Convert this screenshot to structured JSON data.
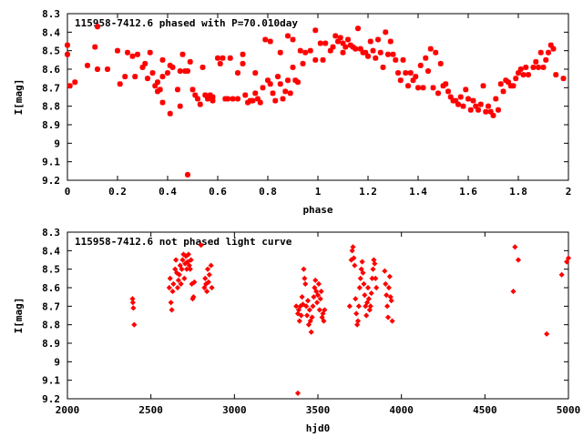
{
  "chart_data": [
    {
      "type": "scatter",
      "title": "115958-7412.6 phased with P=70.010day",
      "xlabel": "phase",
      "ylabel": "I[mag]",
      "xlim": [
        0,
        2
      ],
      "ylim": [
        9.2,
        8.3
      ],
      "y_inverted": true,
      "xticks": [
        0,
        0.2,
        0.4,
        0.6,
        0.8,
        1,
        1.2,
        1.4,
        1.6,
        1.8,
        2
      ],
      "xtick_labels": [
        "0",
        "0.2",
        "0.4",
        "0.6",
        "0.8",
        "1",
        "1.2",
        "1.4",
        "1.6",
        "1.8",
        "2"
      ],
      "yticks": [
        8.3,
        8.4,
        8.5,
        8.6,
        8.7,
        8.8,
        8.9,
        9,
        9.1,
        9.2
      ],
      "ytick_labels": [
        "8.3",
        "8.4",
        "8.5",
        "8.6",
        "8.7",
        "8.8",
        "8.9",
        "9",
        "9.1",
        "9.2"
      ],
      "grid": false,
      "marker": "asterisk",
      "color": "#ff0000",
      "points": [
        [
          0.0,
          8.47
        ],
        [
          0.0,
          8.52
        ],
        [
          0.01,
          8.69
        ],
        [
          0.03,
          8.67
        ],
        [
          0.08,
          8.58
        ],
        [
          0.11,
          8.48
        ],
        [
          0.12,
          8.37
        ],
        [
          0.12,
          8.6
        ],
        [
          0.16,
          8.6
        ],
        [
          0.2,
          8.5
        ],
        [
          0.21,
          8.68
        ],
        [
          0.23,
          8.64
        ],
        [
          0.24,
          8.51
        ],
        [
          0.26,
          8.53
        ],
        [
          0.27,
          8.64
        ],
        [
          0.28,
          8.52
        ],
        [
          0.3,
          8.59
        ],
        [
          0.31,
          8.57
        ],
        [
          0.32,
          8.65
        ],
        [
          0.33,
          8.51
        ],
        [
          0.34,
          8.62
        ],
        [
          0.35,
          8.69
        ],
        [
          0.36,
          8.67
        ],
        [
          0.36,
          8.72
        ],
        [
          0.37,
          8.71
        ],
        [
          0.38,
          8.55
        ],
        [
          0.38,
          8.78
        ],
        [
          0.38,
          8.64
        ],
        [
          0.4,
          8.62
        ],
        [
          0.41,
          8.58
        ],
        [
          0.41,
          8.84
        ],
        [
          0.42,
          8.59
        ],
        [
          0.44,
          8.71
        ],
        [
          0.45,
          8.61
        ],
        [
          0.45,
          8.8
        ],
        [
          0.46,
          8.52
        ],
        [
          0.47,
          8.61
        ],
        [
          0.48,
          8.61
        ],
        [
          0.49,
          8.56
        ],
        [
          0.5,
          8.71
        ],
        [
          0.51,
          8.74
        ],
        [
          0.52,
          8.76
        ],
        [
          0.53,
          8.79
        ],
        [
          0.54,
          8.59
        ],
        [
          0.55,
          8.74
        ],
        [
          0.56,
          8.76
        ],
        [
          0.57,
          8.74
        ],
        [
          0.58,
          8.77
        ],
        [
          0.58,
          8.75
        ],
        [
          0.6,
          8.54
        ],
        [
          0.61,
          8.57
        ],
        [
          0.62,
          8.54
        ],
        [
          0.63,
          8.76
        ],
        [
          0.64,
          8.76
        ],
        [
          0.65,
          8.54
        ],
        [
          0.66,
          8.76
        ],
        [
          0.68,
          8.76
        ],
        [
          0.68,
          8.62
        ],
        [
          0.7,
          8.57
        ],
        [
          0.7,
          8.52
        ],
        [
          0.71,
          8.74
        ],
        [
          0.72,
          8.78
        ],
        [
          0.73,
          8.77
        ],
        [
          0.74,
          8.77
        ],
        [
          0.75,
          8.73
        ],
        [
          0.75,
          8.62
        ],
        [
          0.76,
          8.76
        ],
        [
          0.77,
          8.78
        ],
        [
          0.78,
          8.7
        ],
        [
          0.79,
          8.44
        ],
        [
          0.8,
          8.66
        ],
        [
          0.81,
          8.68
        ],
        [
          0.81,
          8.45
        ],
        [
          0.82,
          8.73
        ],
        [
          0.83,
          8.77
        ],
        [
          0.84,
          8.64
        ],
        [
          0.85,
          8.51
        ],
        [
          0.85,
          8.68
        ],
        [
          0.86,
          8.76
        ],
        [
          0.87,
          8.72
        ],
        [
          0.88,
          8.66
        ],
        [
          0.88,
          8.42
        ],
        [
          0.89,
          8.73
        ],
        [
          0.9,
          8.44
        ],
        [
          0.9,
          8.59
        ],
        [
          0.91,
          8.66
        ],
        [
          0.92,
          8.67
        ],
        [
          0.93,
          8.5
        ],
        [
          0.94,
          8.57
        ],
        [
          0.95,
          8.51
        ],
        [
          0.97,
          8.5
        ],
        [
          0.99,
          8.39
        ],
        [
          0.99,
          8.55
        ],
        [
          1.01,
          8.46
        ],
        [
          1.02,
          8.55
        ],
        [
          1.03,
          8.46
        ],
        [
          1.05,
          8.5
        ],
        [
          1.06,
          8.48
        ],
        [
          1.07,
          8.42
        ],
        [
          1.08,
          8.45
        ],
        [
          1.09,
          8.43
        ],
        [
          1.1,
          8.46
        ],
        [
          1.1,
          8.51
        ],
        [
          1.11,
          8.48
        ],
        [
          1.12,
          8.44
        ],
        [
          1.13,
          8.47
        ],
        [
          1.14,
          8.48
        ],
        [
          1.15,
          8.49
        ],
        [
          1.16,
          8.38
        ],
        [
          1.17,
          8.49
        ],
        [
          1.18,
          8.51
        ],
        [
          1.19,
          8.51
        ],
        [
          1.2,
          8.53
        ],
        [
          1.21,
          8.45
        ],
        [
          1.22,
          8.5
        ],
        [
          1.23,
          8.54
        ],
        [
          1.24,
          8.44
        ],
        [
          1.25,
          8.51
        ],
        [
          1.26,
          8.59
        ],
        [
          1.27,
          8.4
        ],
        [
          1.28,
          8.52
        ],
        [
          1.29,
          8.45
        ],
        [
          1.3,
          8.52
        ],
        [
          1.31,
          8.55
        ],
        [
          1.32,
          8.62
        ],
        [
          1.33,
          8.66
        ],
        [
          1.34,
          8.55
        ],
        [
          1.35,
          8.62
        ],
        [
          1.36,
          8.69
        ],
        [
          1.37,
          8.62
        ],
        [
          1.38,
          8.66
        ],
        [
          1.39,
          8.64
        ],
        [
          1.4,
          8.7
        ],
        [
          1.41,
          8.58
        ],
        [
          1.42,
          8.7
        ],
        [
          1.43,
          8.54
        ],
        [
          1.44,
          8.61
        ],
        [
          1.45,
          8.49
        ],
        [
          1.46,
          8.7
        ],
        [
          1.47,
          8.51
        ],
        [
          1.48,
          8.73
        ],
        [
          1.49,
          8.57
        ],
        [
          1.5,
          8.69
        ],
        [
          1.51,
          8.68
        ],
        [
          1.52,
          8.72
        ],
        [
          1.53,
          8.75
        ],
        [
          1.54,
          8.77
        ],
        [
          1.55,
          8.77
        ],
        [
          1.56,
          8.79
        ],
        [
          1.57,
          8.75
        ],
        [
          1.58,
          8.8
        ],
        [
          1.59,
          8.71
        ],
        [
          1.6,
          8.76
        ],
        [
          1.61,
          8.82
        ],
        [
          1.62,
          8.77
        ],
        [
          1.63,
          8.8
        ],
        [
          1.64,
          8.82
        ],
        [
          1.65,
          8.79
        ],
        [
          1.66,
          8.69
        ],
        [
          1.67,
          8.83
        ],
        [
          1.68,
          8.8
        ],
        [
          1.69,
          8.83
        ],
        [
          1.7,
          8.85
        ],
        [
          1.71,
          8.76
        ],
        [
          1.72,
          8.82
        ],
        [
          1.73,
          8.68
        ],
        [
          1.74,
          8.72
        ],
        [
          1.75,
          8.66
        ],
        [
          1.76,
          8.67
        ],
        [
          1.77,
          8.69
        ],
        [
          1.78,
          8.69
        ],
        [
          1.79,
          8.65
        ],
        [
          1.8,
          8.62
        ],
        [
          1.81,
          8.6
        ],
        [
          1.82,
          8.63
        ],
        [
          1.83,
          8.59
        ],
        [
          1.84,
          8.63
        ],
        [
          1.86,
          8.59
        ],
        [
          1.87,
          8.56
        ],
        [
          1.88,
          8.59
        ],
        [
          1.89,
          8.51
        ],
        [
          1.9,
          8.59
        ],
        [
          1.91,
          8.55
        ],
        [
          1.92,
          8.51
        ],
        [
          1.93,
          8.47
        ],
        [
          1.94,
          8.49
        ],
        [
          1.95,
          8.63
        ],
        [
          1.98,
          8.65
        ],
        [
          0.48,
          9.17
        ]
      ]
    },
    {
      "type": "scatter",
      "title": "115958-7412.6 not phased light curve",
      "xlabel": "hjd0",
      "ylabel": "I[mag]",
      "xlim": [
        2000,
        5000
      ],
      "ylim": [
        9.2,
        8.3
      ],
      "y_inverted": true,
      "xticks": [
        2000,
        2500,
        3000,
        3500,
        4000,
        4500,
        5000
      ],
      "xtick_labels": [
        "2000",
        "2500",
        "3000",
        "3500",
        "4000",
        "4500",
        "5000"
      ],
      "yticks": [
        8.3,
        8.4,
        8.5,
        8.6,
        8.7,
        8.8,
        8.9,
        9,
        9.1,
        9.2
      ],
      "ytick_labels": [
        "8.3",
        "8.4",
        "8.5",
        "8.6",
        "8.7",
        "8.8",
        "8.9",
        "9",
        "9.1",
        "9.2"
      ],
      "grid": false,
      "marker": "diamond",
      "color": "#ff0000",
      "points": [
        [
          2390,
          8.66
        ],
        [
          2392,
          8.68
        ],
        [
          2395,
          8.71
        ],
        [
          2400,
          8.8
        ],
        [
          2610,
          8.6
        ],
        [
          2615,
          8.55
        ],
        [
          2620,
          8.68
        ],
        [
          2625,
          8.72
        ],
        [
          2630,
          8.62
        ],
        [
          2635,
          8.58
        ],
        [
          2645,
          8.5
        ],
        [
          2650,
          8.45
        ],
        [
          2655,
          8.52
        ],
        [
          2660,
          8.6
        ],
        [
          2665,
          8.56
        ],
        [
          2670,
          8.53
        ],
        [
          2675,
          8.48
        ],
        [
          2680,
          8.58
        ],
        [
          2685,
          8.5
        ],
        [
          2690,
          8.45
        ],
        [
          2695,
          8.42
        ],
        [
          2700,
          8.55
        ],
        [
          2705,
          8.47
        ],
        [
          2710,
          8.43
        ],
        [
          2715,
          8.5
        ],
        [
          2720,
          8.46
        ],
        [
          2725,
          8.42
        ],
        [
          2730,
          8.48
        ],
        [
          2735,
          8.5
        ],
        [
          2740,
          8.45
        ],
        [
          2745,
          8.58
        ],
        [
          2750,
          8.66
        ],
        [
          2755,
          8.65
        ],
        [
          2760,
          8.57
        ],
        [
          2800,
          8.37
        ],
        [
          2820,
          8.6
        ],
        [
          2825,
          8.55
        ],
        [
          2830,
          8.58
        ],
        [
          2835,
          8.62
        ],
        [
          2840,
          8.5
        ],
        [
          2845,
          8.57
        ],
        [
          2850,
          8.53
        ],
        [
          2860,
          8.48
        ],
        [
          2865,
          8.6
        ],
        [
          3370,
          8.7
        ],
        [
          3380,
          8.74
        ],
        [
          3385,
          8.72
        ],
        [
          3390,
          8.78
        ],
        [
          3395,
          8.7
        ],
        [
          3400,
          8.75
        ],
        [
          3405,
          8.65
        ],
        [
          3410,
          8.69
        ],
        [
          3415,
          8.5
        ],
        [
          3420,
          8.55
        ],
        [
          3425,
          8.58
        ],
        [
          3430,
          8.7
        ],
        [
          3435,
          8.75
        ],
        [
          3440,
          8.67
        ],
        [
          3445,
          8.8
        ],
        [
          3450,
          8.72
        ],
        [
          3455,
          8.78
        ],
        [
          3460,
          8.84
        ],
        [
          3465,
          8.76
        ],
        [
          3470,
          8.7
        ],
        [
          3475,
          8.65
        ],
        [
          3480,
          8.6
        ],
        [
          3485,
          8.56
        ],
        [
          3490,
          8.62
        ],
        [
          3495,
          8.68
        ],
        [
          3500,
          8.64
        ],
        [
          3505,
          8.58
        ],
        [
          3510,
          8.72
        ],
        [
          3515,
          8.66
        ],
        [
          3520,
          8.62
        ],
        [
          3525,
          8.76
        ],
        [
          3530,
          8.74
        ],
        [
          3535,
          8.78
        ],
        [
          3540,
          8.72
        ],
        [
          3380,
          9.17
        ],
        [
          3690,
          8.7
        ],
        [
          3700,
          8.45
        ],
        [
          3705,
          8.4
        ],
        [
          3710,
          8.38
        ],
        [
          3715,
          8.44
        ],
        [
          3720,
          8.48
        ],
        [
          3725,
          8.66
        ],
        [
          3730,
          8.74
        ],
        [
          3735,
          8.8
        ],
        [
          3740,
          8.78
        ],
        [
          3745,
          8.7
        ],
        [
          3750,
          8.6
        ],
        [
          3755,
          8.55
        ],
        [
          3760,
          8.5
        ],
        [
          3765,
          8.46
        ],
        [
          3770,
          8.52
        ],
        [
          3775,
          8.58
        ],
        [
          3780,
          8.64
        ],
        [
          3785,
          8.7
        ],
        [
          3790,
          8.75
        ],
        [
          3795,
          8.68
        ],
        [
          3800,
          8.6
        ],
        [
          3805,
          8.66
        ],
        [
          3810,
          8.72
        ],
        [
          3815,
          8.7
        ],
        [
          3820,
          8.63
        ],
        [
          3825,
          8.55
        ],
        [
          3830,
          8.5
        ],
        [
          3835,
          8.45
        ],
        [
          3840,
          8.47
        ],
        [
          3845,
          8.55
        ],
        [
          3850,
          8.6
        ],
        [
          3900,
          8.51
        ],
        [
          3905,
          8.58
        ],
        [
          3910,
          8.64
        ],
        [
          3915,
          8.7
        ],
        [
          3920,
          8.76
        ],
        [
          3925,
          8.6
        ],
        [
          3930,
          8.54
        ],
        [
          3935,
          8.65
        ],
        [
          3940,
          8.67
        ],
        [
          3945,
          8.78
        ],
        [
          4670,
          8.62
        ],
        [
          4680,
          8.38
        ],
        [
          4700,
          8.45
        ],
        [
          4870,
          8.85
        ],
        [
          4960,
          8.53
        ],
        [
          4990,
          8.46
        ],
        [
          5000,
          8.44
        ]
      ]
    }
  ]
}
